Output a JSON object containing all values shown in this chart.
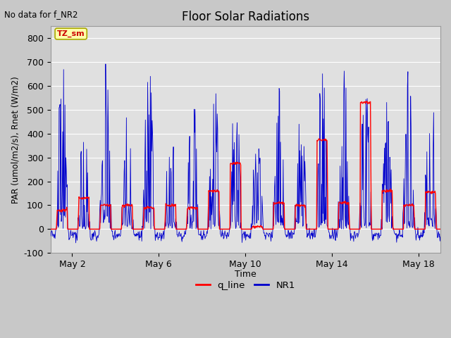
{
  "title": "Floor Solar Radiations",
  "top_left_text": "No data for f_NR2",
  "xlabel": "Time",
  "ylabel": "PAR (umol/m2/s), Rnet (W/m2)",
  "ylim": [
    -100,
    850
  ],
  "yticks": [
    -100,
    0,
    100,
    200,
    300,
    400,
    500,
    600,
    700,
    800
  ],
  "xtick_labels": [
    "May 2",
    "May 6",
    "May 10",
    "May 14",
    "May 18"
  ],
  "xtick_pos": [
    1,
    5,
    9,
    13,
    17
  ],
  "legend_labels": [
    "q_line",
    "NR1"
  ],
  "color_q_line": "#FF0000",
  "color_NR1": "#0000CC",
  "fig_bg_color": "#C8C8C8",
  "plot_bg_color": "#E0E0E0",
  "annotation_box_color": "#FFFFAA",
  "annotation_text": "TZ_sm",
  "annotation_text_color": "#CC0000",
  "n_days": 18,
  "seed": 42
}
